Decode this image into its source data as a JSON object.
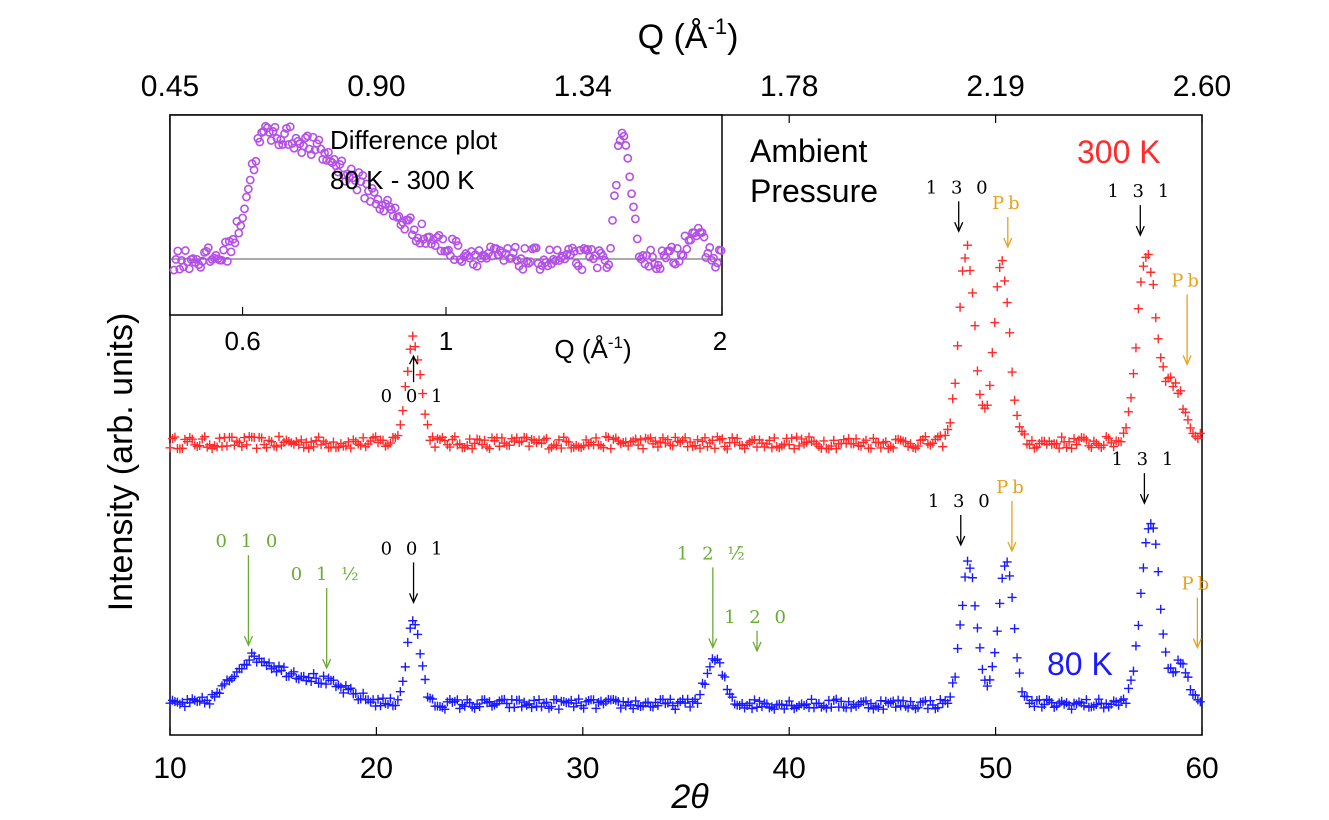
{
  "chart_data": {
    "type": "scatter",
    "title": "",
    "xlabel": "2θ",
    "x_top_label": "Q (Å",
    "x_top_label_sup": "-1",
    "x_top_label_close": ")",
    "ylabel": "Intensity (arb. units)",
    "xlim": [
      10,
      60
    ],
    "xticks": [
      "10",
      "20",
      "30",
      "40",
      "50",
      "60"
    ],
    "x_top_ticks": [
      "0.45",
      "0.90",
      "1.34",
      "1.78",
      "2.19",
      "2.60"
    ],
    "x_top_tick_positions_2theta": [
      10,
      20,
      30,
      40,
      50,
      60
    ],
    "condition_line1": "Ambient",
    "condition_line2": "Pressure",
    "series": [
      {
        "name": "300 K",
        "label": "300 K",
        "color": "#ff2a2a",
        "marker": "+",
        "baseline": 0.0,
        "noise": 0.06,
        "peaks": [
          {
            "center": 21.8,
            "height": 1.0,
            "width": 0.35
          },
          {
            "center": 48.6,
            "height": 1.85,
            "width": 0.38
          },
          {
            "center": 50.3,
            "height": 1.7,
            "width": 0.38
          },
          {
            "center": 57.3,
            "height": 1.78,
            "width": 0.45
          },
          {
            "center": 58.6,
            "height": 0.55,
            "width": 0.55
          }
        ]
      },
      {
        "name": "80 K",
        "label": "80 K",
        "color": "#1a1aff",
        "marker": "+",
        "baseline": -2.5,
        "noise": 0.05,
        "peaks": [
          {
            "center": 13.8,
            "height": 0.32,
            "width": 0.9
          },
          {
            "center": 15.6,
            "height": 0.25,
            "width": 1.4
          },
          {
            "center": 17.8,
            "height": 0.12,
            "width": 1.2
          },
          {
            "center": 21.8,
            "height": 0.8,
            "width": 0.33
          },
          {
            "center": 36.4,
            "height": 0.42,
            "width": 0.42
          },
          {
            "center": 48.7,
            "height": 1.35,
            "width": 0.38
          },
          {
            "center": 50.5,
            "height": 1.35,
            "width": 0.38
          },
          {
            "center": 57.5,
            "height": 1.75,
            "width": 0.45
          },
          {
            "center": 59.0,
            "height": 0.4,
            "width": 0.35
          }
        ]
      }
    ],
    "ylim": [
      -2.7,
      2.8
    ],
    "annotations": [
      {
        "text": "0 0 1",
        "color": "#000000",
        "x": 21.8,
        "series": "300 K",
        "direction": "up"
      },
      {
        "text": "1 3 0",
        "color": "#000000",
        "x": 48.6,
        "series": "300 K",
        "direction": "down"
      },
      {
        "text": "Pb",
        "color": "#e8a21c",
        "x": 50.3,
        "series": "300 K",
        "direction": "down"
      },
      {
        "text": "1 3 1",
        "color": "#000000",
        "x": 57.3,
        "series": "300 K",
        "direction": "down"
      },
      {
        "text": "Pb",
        "color": "#e8a21c",
        "x": 58.6,
        "series": "300 K",
        "direction": "down"
      },
      {
        "text": "0 1 0",
        "color": "#6aab35",
        "x": 13.8,
        "series": "80 K",
        "direction": "down"
      },
      {
        "text": "0 1 ½",
        "color": "#6aab35",
        "x": 17.3,
        "series": "80 K",
        "direction": "down"
      },
      {
        "text": "0 0 1",
        "color": "#000000",
        "x": 21.8,
        "series": "80 K",
        "direction": "down"
      },
      {
        "text": "1 2 ½̄",
        "color": "#6aab35",
        "x": 36.3,
        "series": "80 K",
        "direction": "down"
      },
      {
        "text": "1 2 0",
        "color": "#6aab35",
        "x": 36.6,
        "series": "80 K",
        "direction": "down"
      },
      {
        "text": "1 3 0",
        "color": "#000000",
        "x": 48.7,
        "series": "80 K",
        "direction": "down"
      },
      {
        "text": "Pb",
        "color": "#e8a21c",
        "x": 50.5,
        "series": "80 K",
        "direction": "down"
      },
      {
        "text": "1 3 1",
        "color": "#000000",
        "x": 57.5,
        "series": "80 K",
        "direction": "down"
      },
      {
        "text": "Pb",
        "color": "#e8a21c",
        "x": 59.0,
        "series": "80 K",
        "direction": "down"
      }
    ],
    "inset": {
      "type": "scatter",
      "title_line1": "Difference plot",
      "title_line2": "80 K - 300 K",
      "xlabel": "Q (Å",
      "xlabel_sup": "-1",
      "xlabel_close": ")",
      "xlim": [
        0.5,
        2.0
      ],
      "xticks": [
        "0.6",
        "1",
        "2"
      ],
      "xtick_values": [
        0.6,
        1.0,
        2.0
      ],
      "ylim": [
        -0.35,
        1.25
      ],
      "color": "#b44fe8",
      "marker": "o",
      "features": [
        {
          "center": 0.635,
          "height": 1.0,
          "width_left": 0.025,
          "width_right": 0.17
        },
        {
          "center": 1.55,
          "height": 1.0,
          "width_left": 0.018,
          "width_right": 0.035
        },
        {
          "center": 1.86,
          "height": 0.22,
          "width_left": 0.04,
          "width_right": 0.04
        }
      ],
      "noise": 0.09
    }
  }
}
